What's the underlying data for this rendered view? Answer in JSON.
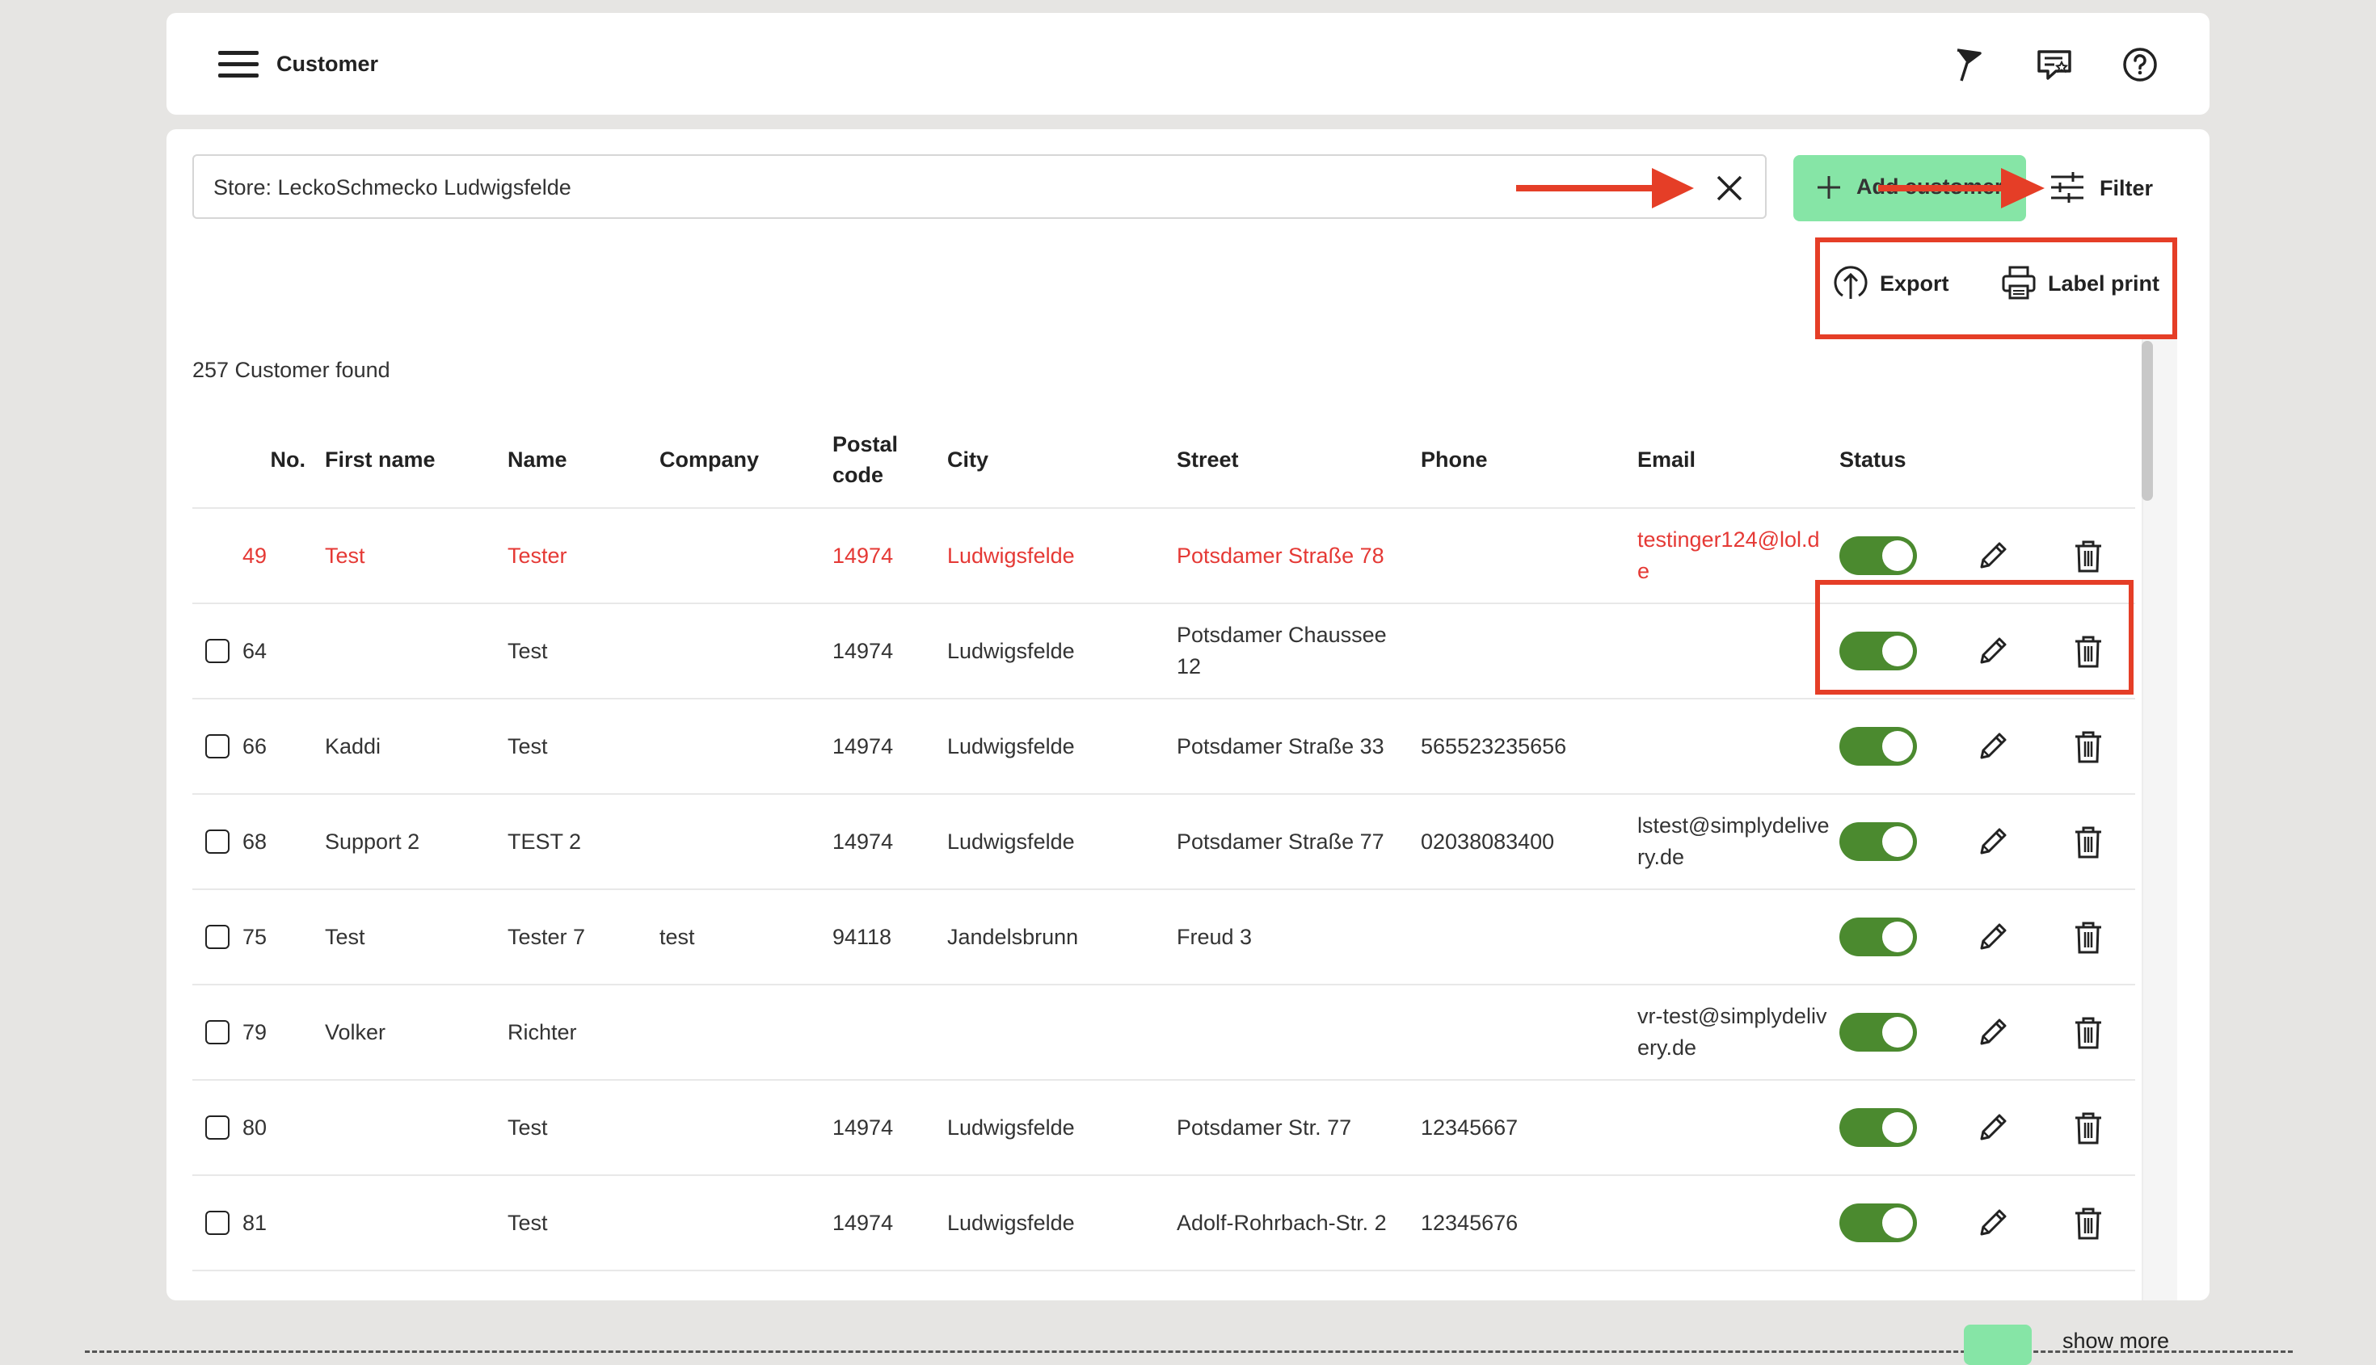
{
  "header": {
    "title": "Customer",
    "icons": [
      "menu-icon",
      "flag-icon",
      "feedback-icon",
      "help-icon"
    ]
  },
  "toolbar": {
    "search_value": "Store: LeckoSchmecko Ludwigsfelde",
    "add_label": "Add customer",
    "filter_label": "Filter",
    "export_label": "Export",
    "label_print_label": "Label print"
  },
  "result_count": "257 Customer found",
  "table": {
    "headers": {
      "no": "No.",
      "first_name": "First name",
      "name": "Name",
      "company": "Company",
      "postal_a": "Postal",
      "postal_b": "code",
      "city": "City",
      "street": "Street",
      "phone": "Phone",
      "email": "Email",
      "status": "Status"
    },
    "rows": [
      {
        "no": "49",
        "first": "Test",
        "name": "Tester",
        "company": "",
        "postal": "14974",
        "city": "Ludwigsfelde",
        "street": "Potsdamer Straße 78",
        "phone": "",
        "email": "testinger124@lol.de",
        "active": true,
        "highlight": true,
        "checkbox": false
      },
      {
        "no": "64",
        "first": "",
        "name": "Test",
        "company": "",
        "postal": "14974",
        "city": "Ludwigsfelde",
        "street": "Potsdamer Chaussee 12",
        "phone": "",
        "email": "",
        "active": true,
        "highlight": false,
        "checkbox": true
      },
      {
        "no": "66",
        "first": "Kaddi",
        "name": "Test",
        "company": "",
        "postal": "14974",
        "city": "Ludwigsfelde",
        "street": "Potsdamer Straße 33",
        "phone": "565523235656",
        "email": "",
        "active": true,
        "highlight": false,
        "checkbox": true
      },
      {
        "no": "68",
        "first": "Support 2",
        "name": "TEST 2",
        "company": "",
        "postal": "14974",
        "city": "Ludwigsfelde",
        "street": "Potsdamer Straße 77",
        "phone": "02038083400",
        "email": "lstest@simplydelivery.de",
        "active": true,
        "highlight": false,
        "checkbox": true
      },
      {
        "no": "75",
        "first": "Test",
        "name": "Tester 7",
        "company": "test",
        "postal": "94118",
        "city": "Jandelsbrunn",
        "street": "Freud 3",
        "phone": "",
        "email": "",
        "active": true,
        "highlight": false,
        "checkbox": true
      },
      {
        "no": "79",
        "first": "Volker",
        "name": "Richter",
        "company": "",
        "postal": "",
        "city": "",
        "street": "",
        "phone": "",
        "email": "vr-test@simplydelivery.de",
        "active": true,
        "highlight": false,
        "checkbox": true
      },
      {
        "no": "80",
        "first": "",
        "name": "Test",
        "company": "",
        "postal": "14974",
        "city": "Ludwigsfelde",
        "street": "Potsdamer Str. 77",
        "phone": "12345667",
        "email": "",
        "active": true,
        "highlight": false,
        "checkbox": true
      },
      {
        "no": "81",
        "first": "",
        "name": "Test",
        "company": "",
        "postal": "14974",
        "city": "Ludwigsfelde",
        "street": "Adolf-Rohrbach-Str. 2",
        "phone": "12345676",
        "email": "",
        "active": true,
        "highlight": false,
        "checkbox": true
      }
    ]
  },
  "footer": {
    "show_more": "show more"
  },
  "colors": {
    "accent_green": "#86e5a6",
    "toggle_green": "#4b8a2f",
    "annotation_red": "#e53e27",
    "highlight_red": "#e53935"
  }
}
